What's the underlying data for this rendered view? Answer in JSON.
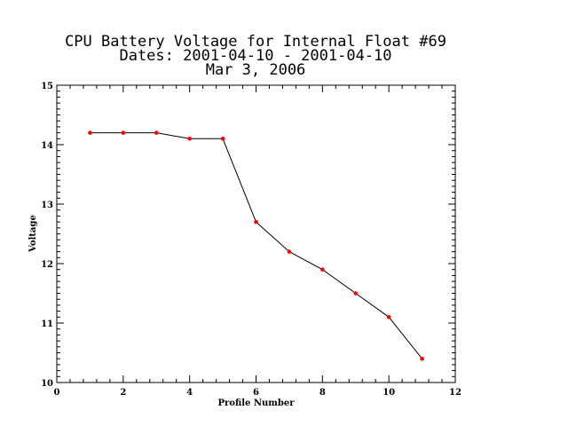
{
  "chart_data": {
    "type": "line",
    "title_lines": [
      "CPU Battery Voltage for Internal Float #69",
      "Dates:  2001-04-10 -  2001-04-10",
      "Mar  3, 2006"
    ],
    "xlabel": "Profile Number",
    "ylabel": "Voltage",
    "xlim": [
      0,
      12
    ],
    "ylim": [
      10,
      15
    ],
    "x_ticks": [
      0,
      2,
      4,
      6,
      8,
      10,
      12
    ],
    "y_ticks": [
      10,
      11,
      12,
      13,
      14,
      15
    ],
    "grid": false,
    "line_color": "#000000",
    "marker_color": "#ff0000",
    "series": [
      {
        "x": [
          1,
          2,
          3,
          4,
          5,
          6,
          7,
          8,
          9,
          10,
          11
        ],
        "y": [
          14.2,
          14.2,
          14.2,
          14.1,
          14.1,
          12.7,
          12.2,
          11.9,
          11.5,
          11.1,
          10.4
        ]
      }
    ]
  }
}
